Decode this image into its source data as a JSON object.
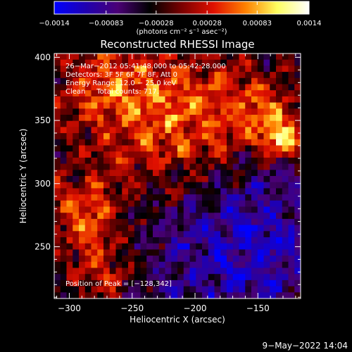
{
  "chart_data": {
    "type": "heatmap",
    "title": "Reconstructed RHESSI Image",
    "xlabel": "Heliocentric X (arcsec)",
    "ylabel": "Heliocentric Y (arcsec)",
    "xlim": [
      -312,
      -116
    ],
    "ylim": [
      209,
      403
    ],
    "x_ticks": [
      -300,
      -250,
      -200,
      -150
    ],
    "x_tick_labels": [
      "−300",
      "−250",
      "−200",
      "−150"
    ],
    "y_ticks": [
      250,
      300,
      350,
      400
    ],
    "y_tick_labels": [
      "250",
      "300",
      "350",
      "400"
    ],
    "colorbar": {
      "min": -0.0014,
      "max": 0.0014,
      "ticks": [
        -0.0014,
        -0.00083,
        -0.00028,
        0.00028,
        0.00083,
        0.0014
      ],
      "tick_labels": [
        "−0.0014",
        "−0.00083",
        "−0.00028",
        "0.00028",
        "0.00083",
        "0.0014"
      ],
      "unit_label": "(photons cm⁻² s⁻¹ asec⁻²)",
      "colormap": [
        "#0000ff",
        "#2000b0",
        "#4a0075",
        "#000000",
        "#7a0000",
        "#e01000",
        "#ff8000",
        "#ffff60",
        "#ffffff"
      ]
    },
    "annotations": [
      "26−Mar−2012 05:41:48.000 to 05:42:28.000",
      "Detectors: 3F 5F 6F 7F 8F, Att 0",
      "Energy Range: 12.0 − 25.0 keV",
      "Clean     Total counts: 717.",
      "Position of Peak = [−128,342]"
    ],
    "grid": false,
    "map_grid": {
      "nx": 40,
      "ny": 40
    }
  },
  "footer": {
    "date": "9−May−2022 14:04"
  }
}
